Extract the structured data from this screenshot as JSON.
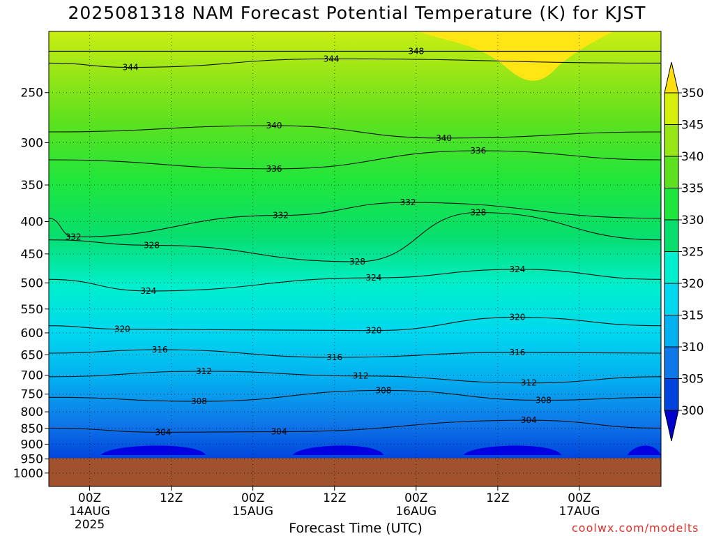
{
  "title": "2025081318 NAM Forecast Potential Temperature (K) for KJST",
  "x_axis_title": "Forecast Time (UTC)",
  "credit": "coolwx.com/modelts",
  "chart_data": {
    "type": "contour",
    "title": "2025081318 NAM Forecast Potential Temperature (K) for KJST",
    "xlabel": "Forecast Time (UTC)",
    "ylabel": "",
    "units": "K",
    "y_scale": "log-pressure",
    "y_reversed": true,
    "xlim": [
      -0.25,
      3.5
    ],
    "ylim": [
      1050,
      200
    ],
    "x_ticks": [
      {
        "x": 0.0,
        "lines": [
          "00Z",
          "14AUG",
          "2025"
        ]
      },
      {
        "x": 0.5,
        "lines": [
          "12Z"
        ]
      },
      {
        "x": 1.0,
        "lines": [
          "00Z",
          "15AUG"
        ]
      },
      {
        "x": 1.5,
        "lines": [
          "12Z"
        ]
      },
      {
        "x": 2.0,
        "lines": [
          "00Z",
          "16AUG"
        ]
      },
      {
        "x": 2.5,
        "lines": [
          "12Z"
        ]
      },
      {
        "x": 3.0,
        "lines": [
          "00Z",
          "17AUG"
        ]
      }
    ],
    "y_ticks": [
      250,
      300,
      350,
      400,
      450,
      500,
      550,
      600,
      650,
      700,
      750,
      800,
      850,
      900,
      950,
      1000
    ],
    "surface_pressure": 947,
    "grid": true,
    "colorbar": {
      "levels": [
        300,
        305,
        310,
        315,
        320,
        325,
        330,
        335,
        340,
        345,
        350
      ],
      "colors": [
        "#0000cc",
        "#0044dd",
        "#0f78e8",
        "#04b1f0",
        "#00d8ef",
        "#00efce",
        "#08de6e",
        "#1fe63c",
        "#5de11f",
        "#99e617",
        "#d6ef0c",
        "#ffde10"
      ],
      "ground_color": "#a0512d",
      "placement": "right"
    },
    "contour_labels": [
      {
        "x": 0.25,
        "p": 228,
        "value": 344
      },
      {
        "x": 1.48,
        "p": 221,
        "value": 344
      },
      {
        "x": 2.0,
        "p": 215,
        "value": 348
      },
      {
        "x": 1.13,
        "p": 282,
        "value": 340
      },
      {
        "x": 2.17,
        "p": 295,
        "value": 340
      },
      {
        "x": 2.38,
        "p": 309,
        "value": 336
      },
      {
        "x": 1.13,
        "p": 330,
        "value": 336
      },
      {
        "x": 1.17,
        "p": 391,
        "value": 332
      },
      {
        "x": 1.95,
        "p": 373,
        "value": 332
      },
      {
        "x": -0.1,
        "p": 423,
        "value": 332
      },
      {
        "x": 0.38,
        "p": 436,
        "value": 328
      },
      {
        "x": 1.64,
        "p": 463,
        "value": 328
      },
      {
        "x": 2.38,
        "p": 387,
        "value": 328
      },
      {
        "x": 1.74,
        "p": 491,
        "value": 324
      },
      {
        "x": 2.62,
        "p": 476,
        "value": 324
      },
      {
        "x": 0.36,
        "p": 515,
        "value": 324
      },
      {
        "x": 0.2,
        "p": 592,
        "value": 320
      },
      {
        "x": 1.74,
        "p": 595,
        "value": 320
      },
      {
        "x": 2.62,
        "p": 567,
        "value": 320
      },
      {
        "x": 0.43,
        "p": 638,
        "value": 316
      },
      {
        "x": 1.5,
        "p": 656,
        "value": 316
      },
      {
        "x": 2.62,
        "p": 644,
        "value": 316
      },
      {
        "x": 0.7,
        "p": 690,
        "value": 312
      },
      {
        "x": 1.66,
        "p": 702,
        "value": 312
      },
      {
        "x": 2.69,
        "p": 720,
        "value": 312
      },
      {
        "x": 0.67,
        "p": 770,
        "value": 308
      },
      {
        "x": 1.8,
        "p": 740,
        "value": 308
      },
      {
        "x": 2.78,
        "p": 767,
        "value": 308
      },
      {
        "x": 0.45,
        "p": 862,
        "value": 304
      },
      {
        "x": 1.16,
        "p": 860,
        "value": 304
      },
      {
        "x": 2.69,
        "p": 825,
        "value": 304
      }
    ]
  }
}
